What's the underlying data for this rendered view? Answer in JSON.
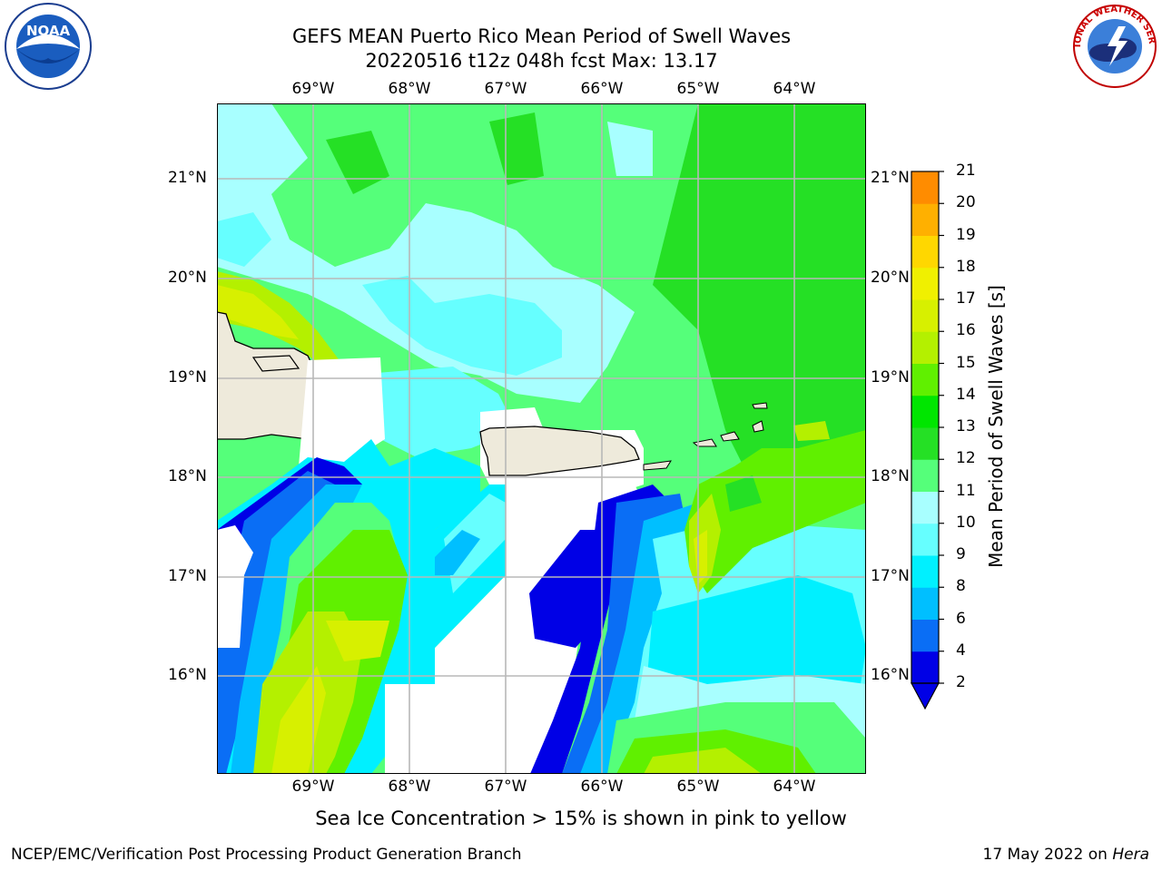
{
  "title": {
    "line1": "GEFS MEAN Puerto Rico Mean Period of Swell Waves",
    "line2": "20220516 t12z 048h fcst   Max: 13.17"
  },
  "map": {
    "longitude_labels": [
      "69°W",
      "68°W",
      "67°W",
      "66°W",
      "65°W",
      "64°W"
    ],
    "latitude_labels": [
      "21°N",
      "20°N",
      "19°N",
      "18°N",
      "17°N",
      "16°N"
    ]
  },
  "colorbar": {
    "label": "Mean Period of Swell Waves [s]",
    "ticks": [
      "2",
      "4",
      "6",
      "8",
      "9",
      "10",
      "11",
      "12",
      "13",
      "14",
      "15",
      "16",
      "17",
      "18",
      "19",
      "20",
      "21"
    ],
    "colors": [
      "#0000e6",
      "#0a6ef5",
      "#00bfff",
      "#00f0ff",
      "#66ffff",
      "#a8ffff",
      "#55ff7a",
      "#25e025",
      "#00e600",
      "#60f000",
      "#b4f000",
      "#d7f000",
      "#f0f000",
      "#ffd700",
      "#ffb000",
      "#ff8c00",
      "#ff5a00",
      "#ff2800",
      "#ff0000"
    ],
    "extend_low_color": "#0000e6"
  },
  "logos": {
    "noaa": "NOAA",
    "nws": "NATIONAL WEATHER SERVICE"
  },
  "footer": {
    "note": "Sea Ice Concentration > 15% is shown in pink to yellow",
    "left": "NCEP/EMC/Verification Post Processing Product Generation Branch",
    "right_date": "17 May 2022 on ",
    "right_host": "Hera"
  }
}
